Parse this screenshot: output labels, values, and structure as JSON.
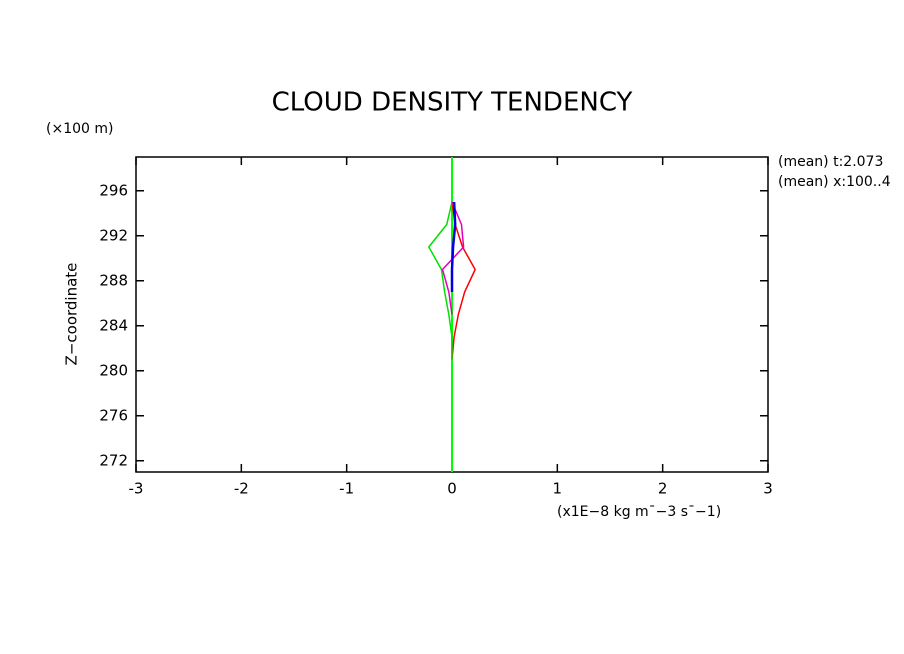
{
  "chart_data": {
    "type": "line",
    "title": "CLOUD DENSITY TENDENCY",
    "y_unit": "(×100 m)",
    "y_label": "Z−coordinate",
    "x_label": "(x1E−8 kg m¯−3 s¯−1)",
    "annotations": [
      "(mean) t:2.073",
      "(mean) x:100..4"
    ],
    "z": [
      281,
      283,
      285,
      287,
      289,
      291,
      293,
      295
    ],
    "series": [
      {
        "color": "#ff0000",
        "values": [
          0,
          0.02,
          0.06,
          0.12,
          0.22,
          0.1,
          0.03,
          0
        ]
      },
      {
        "color": "#00e000",
        "values": [
          0,
          0,
          -0.03,
          -0.07,
          -0.1,
          -0.22,
          -0.05,
          0
        ]
      },
      {
        "color": "#e000c0",
        "values": [
          null,
          null,
          0,
          -0.03,
          -0.09,
          0.11,
          0.09,
          0
        ]
      },
      {
        "color": "#0000e0",
        "values": [
          null,
          null,
          null,
          0,
          0,
          0.01,
          0.03,
          0.02
        ]
      }
    ],
    "xlim": [
      -3,
      3
    ],
    "xticks": [
      -3,
      -2,
      -1,
      0,
      1,
      2,
      3
    ],
    "ylim": [
      271,
      299
    ],
    "yticks": [
      272,
      276,
      280,
      284,
      288,
      292,
      296
    ],
    "zero_line": true,
    "zero_line_color": "#00ff00"
  }
}
